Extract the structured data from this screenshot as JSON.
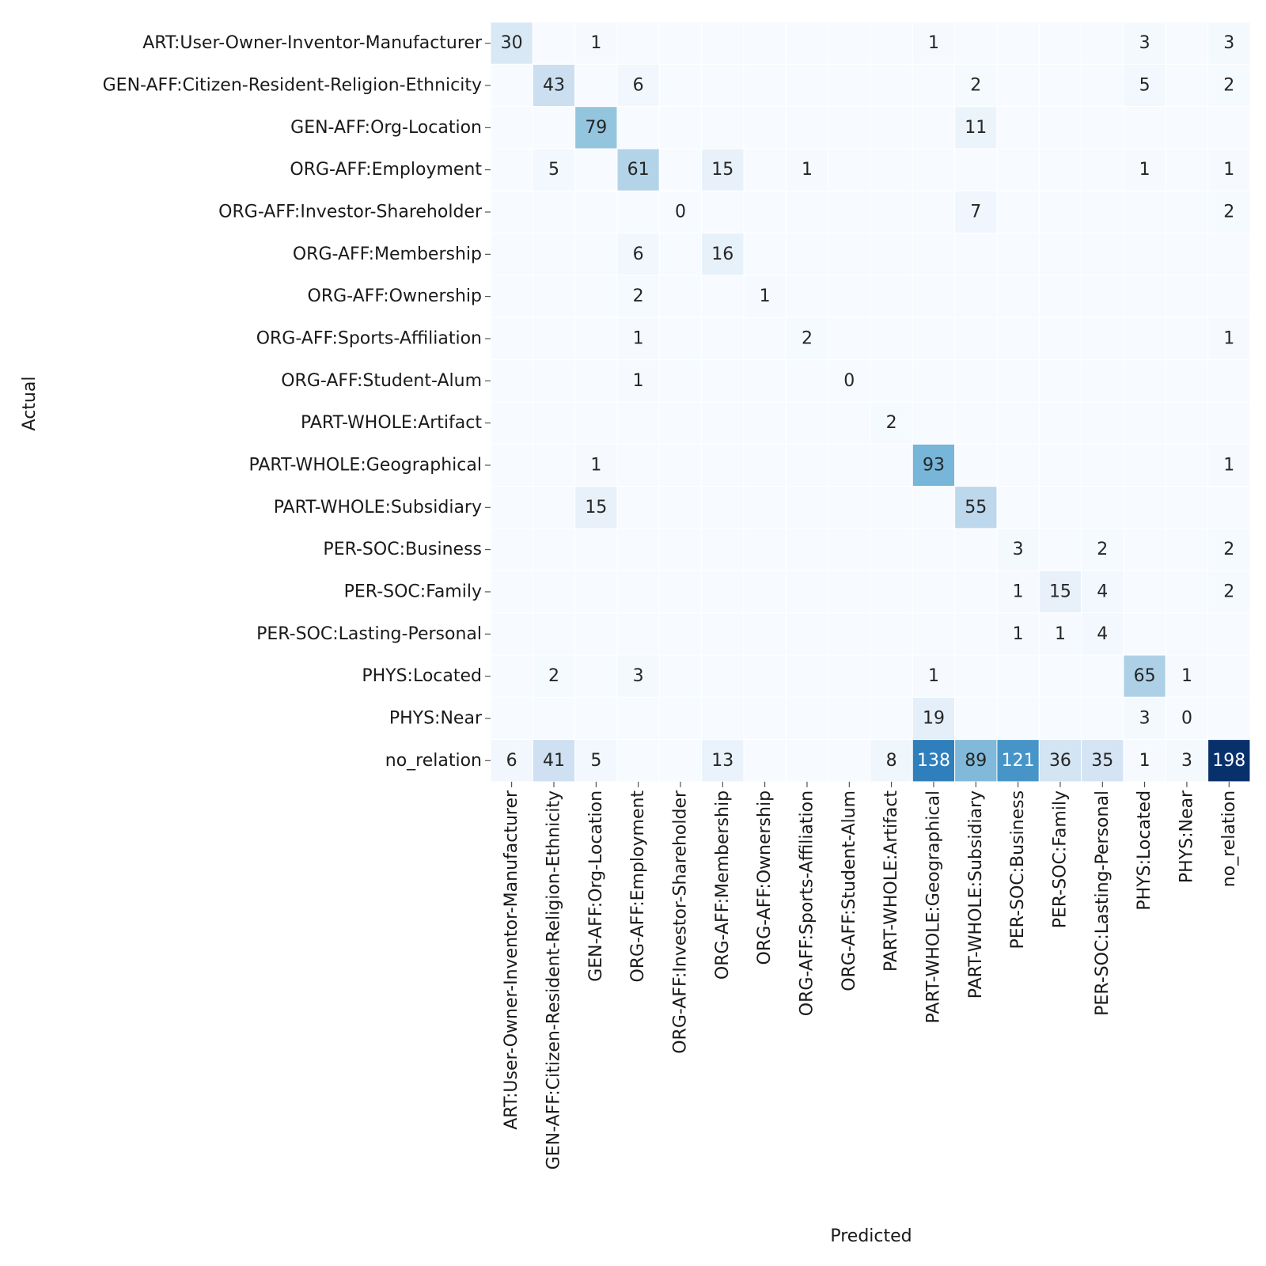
{
  "chart_data": {
    "type": "heatmap",
    "title": "",
    "xlabel": "Predicted",
    "ylabel": "Actual",
    "x_categories": [
      "ART:User-Owner-Inventor-Manufacturer",
      "GEN-AFF:Citizen-Resident-Religion-Ethnicity",
      "GEN-AFF:Org-Location",
      "ORG-AFF:Employment",
      "ORG-AFF:Investor-Shareholder",
      "ORG-AFF:Membership",
      "ORG-AFF:Ownership",
      "ORG-AFF:Sports-Affiliation",
      "ORG-AFF:Student-Alum",
      "PART-WHOLE:Artifact",
      "PART-WHOLE:Geographical",
      "PART-WHOLE:Subsidiary",
      "PER-SOC:Business",
      "PER-SOC:Family",
      "PER-SOC:Lasting-Personal",
      "PHYS:Located",
      "PHYS:Near",
      "no_relation"
    ],
    "y_categories": [
      "ART:User-Owner-Inventor-Manufacturer",
      "GEN-AFF:Citizen-Resident-Religion-Ethnicity",
      "GEN-AFF:Org-Location",
      "ORG-AFF:Employment",
      "ORG-AFF:Investor-Shareholder",
      "ORG-AFF:Membership",
      "ORG-AFF:Ownership",
      "ORG-AFF:Sports-Affiliation",
      "ORG-AFF:Student-Alum",
      "PART-WHOLE:Artifact",
      "PART-WHOLE:Geographical",
      "PART-WHOLE:Subsidiary",
      "PER-SOC:Business",
      "PER-SOC:Family",
      "PER-SOC:Lasting-Personal",
      "PHYS:Located",
      "PHYS:Near",
      "no_relation"
    ],
    "annotations": [
      [
        "30",
        "",
        "1",
        "",
        "",
        "",
        "",
        "",
        "",
        "",
        "1",
        "",
        "",
        "",
        "",
        "3",
        "",
        "3"
      ],
      [
        "",
        "43",
        "",
        "6",
        "",
        "",
        "",
        "",
        "",
        "",
        "",
        "2",
        "",
        "",
        "",
        "5",
        "",
        "2"
      ],
      [
        "",
        "",
        "79",
        "",
        "",
        "",
        "",
        "",
        "",
        "",
        "",
        "11",
        "",
        "",
        "",
        "",
        "",
        ""
      ],
      [
        "",
        "5",
        "",
        "61",
        "",
        "15",
        "",
        "1",
        "",
        "",
        "",
        "",
        "",
        "",
        "",
        "1",
        "",
        "1"
      ],
      [
        "",
        "",
        "",
        "",
        "0",
        "",
        "",
        "",
        "",
        "",
        "",
        "7",
        "",
        "",
        "",
        "",
        "",
        "2"
      ],
      [
        "",
        "",
        "",
        "6",
        "",
        "16",
        "",
        "",
        "",
        "",
        "",
        "",
        "",
        "",
        "",
        "",
        "",
        ""
      ],
      [
        "",
        "",
        "",
        "2",
        "",
        "",
        "1",
        "",
        "",
        "",
        "",
        "",
        "",
        "",
        "",
        "",
        "",
        ""
      ],
      [
        "",
        "",
        "",
        "1",
        "",
        "",
        "",
        "2",
        "",
        "",
        "",
        "",
        "",
        "",
        "",
        "",
        "",
        "1"
      ],
      [
        "",
        "",
        "",
        "1",
        "",
        "",
        "",
        "",
        "0",
        "",
        "",
        "",
        "",
        "",
        "",
        "",
        "",
        ""
      ],
      [
        "",
        "",
        "",
        "",
        "",
        "",
        "",
        "",
        "",
        "2",
        "",
        "",
        "",
        "",
        "",
        "",
        "",
        ""
      ],
      [
        "",
        "",
        "1",
        "",
        "",
        "",
        "",
        "",
        "",
        "",
        "93",
        "",
        "",
        "",
        "",
        "",
        "",
        "1"
      ],
      [
        "",
        "",
        "15",
        "",
        "",
        "",
        "",
        "",
        "",
        "",
        "",
        "55",
        "",
        "",
        "",
        "",
        "",
        ""
      ],
      [
        "",
        "",
        "",
        "",
        "",
        "",
        "",
        "",
        "",
        "",
        "",
        "",
        "3",
        "",
        "2",
        "",
        "",
        "2"
      ],
      [
        "",
        "",
        "",
        "",
        "",
        "",
        "",
        "",
        "",
        "",
        "",
        "",
        "1",
        "15",
        "4",
        "",
        "",
        "2"
      ],
      [
        "",
        "",
        "",
        "",
        "",
        "",
        "",
        "",
        "",
        "",
        "",
        "",
        "1",
        "1",
        "4",
        "",
        "",
        ""
      ],
      [
        "",
        "2",
        "",
        "3",
        "",
        "",
        "",
        "",
        "",
        "",
        "1",
        "",
        "",
        "",
        "",
        "65",
        "1",
        ""
      ],
      [
        "",
        "",
        "",
        "",
        "",
        "",
        "",
        "",
        "",
        "",
        "19",
        "",
        "",
        "",
        "",
        "3",
        "0",
        ""
      ],
      [
        "6",
        "41",
        "5",
        "",
        "",
        "13",
        "",
        "",
        "",
        "8",
        "138",
        "89",
        "121",
        "36",
        "35",
        "1",
        "3",
        "198"
      ]
    ],
    "color_scale": {
      "colormap": "Blues",
      "vmin": 0,
      "vmax": 198
    },
    "colorbar": false
  }
}
